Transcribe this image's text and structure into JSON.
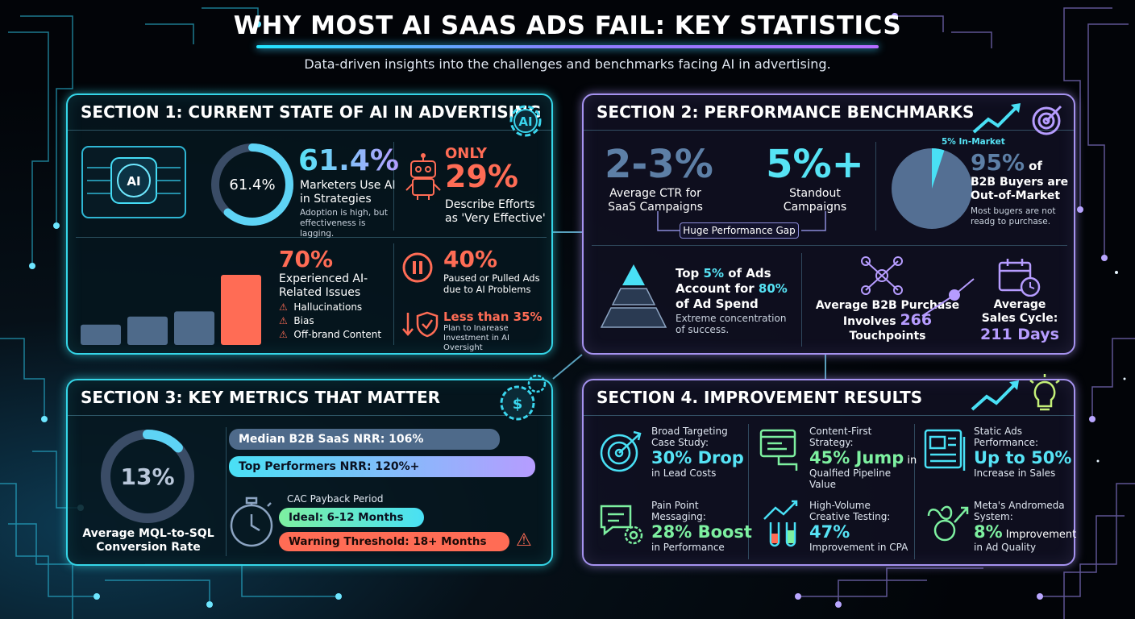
{
  "header": {
    "title": "WHY MOST AI SAAS ADS FAIL: KEY STATISTICS",
    "subtitle": "Data-driven insights into the challenges and benchmarks facing AI in advertising."
  },
  "colors": {
    "cyan": "#56e3f5",
    "purple": "#b69cff",
    "coral": "#ff6c55",
    "green": "#7df0a0",
    "slate": "#4e6a8a"
  },
  "section1": {
    "title": "SECTION 1: CURRENT STATE OF AI IN ADVERTISING",
    "ai_badge": "AI",
    "ring_label": "61.4%",
    "ring_fraction": 0.614,
    "stat1_value": "61.4%",
    "stat1_label": "Marketers Use AI in Strategies",
    "stat1_note": "Adoption is high, but effectiveness is lagging.",
    "stat2_prefix": "ONLY",
    "stat2_value": "29%",
    "stat2_label": "Describe Efforts as 'Very Effective'",
    "bar_values": [
      0.2,
      0.28,
      0.33,
      0.69
    ],
    "stat3_value": "70%",
    "stat3_label": "Experienced AI-Related Issues",
    "issues": [
      "Hallucinations",
      "Bias",
      "Off-brand Content"
    ],
    "stat4_value": "40%",
    "stat4_label": "Paused or Pulled Ads due to AI Problems",
    "stat5_value": "Less than 35%",
    "stat5_label": "Plan to Inarease Investment in AI Oversight"
  },
  "section2": {
    "title": "SECTION 2: PERFORMANCE BENCHMARKS",
    "ctr_value": "2-3%",
    "ctr_label": "Average CTR for SaaS Campaigns",
    "standout_value": "5%+",
    "standout_label": "Standout Campaigns",
    "gap_label": "Huge Performance Gap",
    "pie_label": "5% In-Market",
    "pie_fraction": 0.05,
    "b2b_value": "95%",
    "b2b_suffix": "of",
    "b2b_label": "B2B Buyers are Out-of-Market",
    "b2b_note": "Most bugers are not readg to purchase.",
    "top_prefix": "Top",
    "top_value": "5%",
    "top_mid": "of Ads Account for",
    "top_value2": "80%",
    "top_end": "of Ad Spend",
    "top_note": "Extreme concentration of success.",
    "touch_prefix": "Average B2B Purchase Involves",
    "touch_value": "266",
    "touch_suffix": "Touchpoints",
    "cycle_label": "Average Sales Cycle:",
    "cycle_value": "211 Days"
  },
  "section3": {
    "title": "SECTION 3: KEY METRICS THAT MATTER",
    "ring_label": "13%",
    "ring_fraction": 0.13,
    "ring_caption": "Average MQL-to-SQL Conversion Rate",
    "nrr_median": "Median B2B SaaS NRR: 106%",
    "nrr_top": "Top Performers NRR: 120%+",
    "cac_label": "CAC Payback Period",
    "cac_ideal": "Ideal: 6-12 Months",
    "cac_warning": "Warning Threshold: 18+ Months"
  },
  "section4": {
    "title": "SECTION 4. IMPROVEMENT RESULTS",
    "items": [
      {
        "title": "Broad Targeting Case Study:",
        "value": "30% Drop",
        "suffix": "",
        "sub": "in Lead Costs",
        "color": "#56e3f5"
      },
      {
        "title": "Content-First Strategy:",
        "value": "45% Jump",
        "suffix": " in",
        "sub": "Qualfied Pipeline Value",
        "color": "#7df0a0"
      },
      {
        "title": "Static Ads Performance:",
        "value": "Up to 50%",
        "suffix": "",
        "sub": "Increase in Sales",
        "color": "#56e3f5"
      },
      {
        "title": "Pain Point Messaging:",
        "value": "28% Boost",
        "suffix": "",
        "sub": "in Performance",
        "color": "#7df0a0"
      },
      {
        "title": "High-Volume Creative Testing:",
        "value": "47%",
        "suffix": "",
        "sub": "Improvement in CPA",
        "color": "#56e3f5"
      },
      {
        "title": "Meta's Andromeda System:",
        "value": "8%",
        "suffix": " Improvement",
        "sub": "in Ad Quality",
        "color": "#7df0a0"
      }
    ]
  }
}
